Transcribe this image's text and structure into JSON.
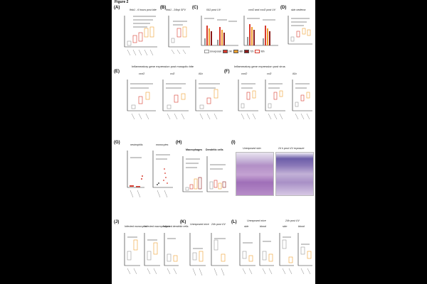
{
  "figure": {
    "title": "Figure 2"
  },
  "panels": {
    "A": {
      "label": "(A)",
      "title": "Ifnb1 - 6 hours post bite"
    },
    "B": {
      "label": "(B)",
      "title": "Ifnb1 - 24hpi SFV"
    },
    "C": {
      "label": "(C)",
      "title": "ISG post UV",
      "title2": "cxcl2 and cxcl2 post UV"
    },
    "D": {
      "label": "(D)",
      "title": "skin oedema"
    },
    "E": {
      "label": "(E)",
      "row_title": "Inflammatory gene expression post mosquito bite",
      "titles": [
        "cxcl2",
        "ccl2",
        "il1b"
      ]
    },
    "F": {
      "label": "(F)",
      "row_title": "Inflammatory gene expression post virus",
      "titles": [
        "cxcl2",
        "ccl2",
        "il1b"
      ]
    },
    "G": {
      "label": "(G)",
      "titles": [
        "neutrophils",
        "monocytes"
      ]
    },
    "H": {
      "label": "(H)",
      "titles": [
        "Macrophages",
        "Dendritic cells"
      ]
    },
    "I": {
      "label": "(I)",
      "titles": [
        "Unexposed skin",
        "24 h post UV exposure"
      ]
    },
    "J": {
      "label": "(J)",
      "titles": [
        "Infected monocytes",
        "Infected macrophages",
        "Infected dendritic cells"
      ]
    },
    "K": {
      "label": "(K)",
      "titles": [
        "Unexposed mice",
        "24h post UV"
      ]
    },
    "L": {
      "label": "(L)",
      "titles": [
        "Unexposed mice",
        "skin",
        "blood",
        "24h post UV",
        "skin",
        "blood"
      ]
    }
  },
  "legend_C": [
    "Unexposed",
    "24h",
    "48h",
    "72h",
    "96h"
  ],
  "colors": {
    "grey": "#999999",
    "red": "#d73a2e",
    "orange": "#f0a030",
    "dark_red": "#8b1a1a"
  }
}
